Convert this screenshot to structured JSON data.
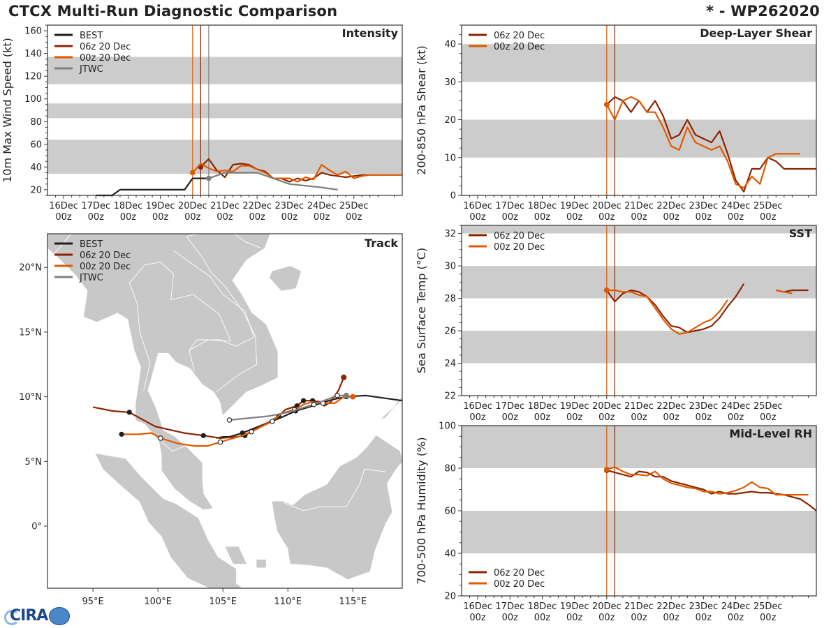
{
  "header": {
    "title": "CTCX Multi-Run Diagnostic Comparison",
    "storm_id": "* - WP262020"
  },
  "logo": {
    "text": "CIRA"
  },
  "colors": {
    "best": "#1e1e1e",
    "run06": "#8b2500",
    "run00": "#e05a00",
    "jtwc": "#7f7f7f",
    "band": "#cccccc",
    "land": "#c8c8c8",
    "border": "#ffffff"
  },
  "time_ticks": [
    "16Dec",
    "17Dec",
    "18Dec",
    "19Dec",
    "20Dec",
    "21Dec",
    "22Dec",
    "23Dec",
    "24Dec",
    "25Dec"
  ],
  "time_tick_hour": "00z",
  "chart_data": [
    {
      "id": "intensity",
      "type": "line",
      "title": "Intensity",
      "xlabel": "",
      "ylabel": "10m Max Wind Speed (kt)",
      "xlim": [
        -0.5,
        10.5
      ],
      "ylim": [
        15,
        165
      ],
      "yticks": [
        20,
        40,
        60,
        80,
        100,
        120,
        140,
        160
      ],
      "bands": [
        [
          34,
          64
        ],
        [
          83,
          96
        ],
        [
          113,
          137
        ]
      ],
      "vlines": [
        {
          "x": 4.0,
          "series": "run00"
        },
        {
          "x": 4.25,
          "series": "run06"
        },
        {
          "x": 4.5,
          "series": "jtwc"
        }
      ],
      "legend": {
        "position": "top-left",
        "entries": [
          "BEST",
          "06z 20 Dec",
          "00z 20 Dec",
          "JTWC"
        ]
      },
      "series": [
        {
          "name": "BEST",
          "key": "best",
          "x": [
            1.0,
            1.5,
            1.75,
            2.0,
            2.5,
            3.0,
            3.5,
            3.75,
            4.0,
            4.25,
            4.5
          ],
          "y": [
            15,
            15,
            20,
            20,
            20,
            20,
            20,
            20,
            30,
            30,
            30
          ]
        },
        {
          "name": "06z 20 Dec",
          "key": "run06",
          "start_marker": true,
          "x": [
            4.25,
            4.5,
            4.75,
            5.0,
            5.25,
            5.5,
            5.75,
            6.0,
            6.25,
            6.5,
            6.75,
            7.0,
            7.25,
            7.5,
            7.75,
            8.0,
            8.25,
            8.5,
            8.75,
            9.0,
            9.25,
            9.5,
            9.75,
            10.0,
            10.25,
            10.5
          ],
          "y": [
            40,
            47,
            37,
            31,
            42,
            43,
            42,
            38,
            36,
            30,
            30,
            27,
            30,
            28,
            30,
            35,
            33,
            32,
            31,
            32,
            33,
            33,
            33,
            33,
            33,
            33
          ]
        },
        {
          "name": "00z 20 Dec",
          "key": "run00",
          "start_marker": true,
          "x": [
            4.0,
            4.25,
            4.5,
            4.75,
            5.0,
            5.25,
            5.5,
            5.75,
            6.0,
            6.25,
            6.5,
            6.75,
            7.0,
            7.25,
            7.5,
            7.75,
            8.0,
            8.25,
            8.5,
            8.75,
            9.0,
            9.25,
            9.5,
            9.75,
            10.0,
            10.25,
            10.5
          ],
          "y": [
            35,
            43,
            39,
            36,
            37,
            36,
            41,
            41,
            38,
            35,
            30,
            30,
            30,
            27,
            31,
            29,
            42,
            37,
            33,
            36,
            30,
            32,
            33,
            33,
            33,
            33,
            33
          ]
        },
        {
          "name": "JTWC",
          "key": "jtwc",
          "start_marker": true,
          "x": [
            4.5,
            5.0,
            6.0,
            7.0,
            8.0,
            8.5
          ],
          "y": [
            30,
            35,
            35,
            25,
            22,
            20
          ]
        }
      ]
    },
    {
      "id": "shear",
      "type": "line",
      "title": "Deep-Layer Shear",
      "ylabel": "200-850 hPa Shear (kt)",
      "xlim": [
        -0.5,
        10.5
      ],
      "ylim": [
        0,
        45
      ],
      "yticks": [
        0,
        10,
        20,
        30,
        40
      ],
      "bands": [
        [
          10,
          20
        ],
        [
          30,
          40
        ]
      ],
      "vlines": [
        {
          "x": 4.0,
          "series": "run00"
        },
        {
          "x": 4.25,
          "series": "run06"
        }
      ],
      "legend": {
        "position": "top-left",
        "entries": [
          "06z 20 Dec",
          "00z 20 Dec"
        ]
      },
      "series": [
        {
          "name": "06z 20 Dec",
          "key": "run06",
          "start_marker": true,
          "x": [
            4.0,
            4.25,
            4.5,
            4.75,
            5.0,
            5.25,
            5.5,
            5.75,
            6.0,
            6.25,
            6.5,
            6.75,
            7.0,
            7.25,
            7.5,
            7.75,
            8.0,
            8.25,
            8.5,
            8.75,
            9.0,
            9.25,
            9.5,
            9.75,
            10.0,
            10.25,
            10.5
          ],
          "y": [
            24,
            26,
            25,
            22,
            25,
            22,
            25,
            21,
            15,
            16,
            20,
            16,
            15,
            14,
            17,
            11,
            4,
            1,
            7,
            7,
            10,
            9,
            7,
            7,
            7,
            7,
            7
          ]
        },
        {
          "name": "00z 20 Dec",
          "key": "run00",
          "start_marker": true,
          "x": [
            4.0,
            4.25,
            4.5,
            4.75,
            5.0,
            5.25,
            5.5,
            5.75,
            6.0,
            6.25,
            6.5,
            6.75,
            7.0,
            7.25,
            7.5,
            7.75,
            8.0,
            8.25,
            8.5,
            8.75,
            9.0,
            9.25,
            9.5,
            9.75,
            10.0
          ],
          "y": [
            24,
            20,
            25,
            26,
            25,
            22,
            22,
            18,
            13,
            12,
            18,
            14,
            13,
            12,
            13,
            9,
            3,
            2,
            5,
            3,
            10,
            11,
            11,
            11,
            11
          ]
        }
      ]
    },
    {
      "id": "sst",
      "type": "line",
      "title": "SST",
      "ylabel": "Sea Surface Temp (°C)",
      "xlim": [
        -0.5,
        10.5
      ],
      "ylim": [
        22,
        32.5
      ],
      "yticks": [
        22,
        24,
        26,
        28,
        30,
        32
      ],
      "bands": [
        [
          24,
          26
        ],
        [
          28,
          30
        ],
        [
          32,
          34
        ]
      ],
      "vlines": [
        {
          "x": 4.0,
          "series": "run00"
        },
        {
          "x": 4.25,
          "series": "run06"
        }
      ],
      "legend": {
        "position": "top-left",
        "entries": [
          "06z 20 Dec",
          "00z 20 Dec"
        ]
      },
      "series": [
        {
          "name": "06z 20 Dec",
          "key": "run06",
          "start_marker": true,
          "x": [
            4.0,
            4.25,
            4.5,
            4.75,
            5.0,
            5.25,
            5.5,
            5.75,
            6.0,
            6.25,
            6.5,
            6.75,
            7.0,
            7.25,
            7.5,
            7.75,
            8.0,
            8.25
          ],
          "y": [
            28.5,
            27.8,
            28.3,
            28.5,
            28.4,
            28.1,
            27.6,
            26.9,
            26.3,
            26.2,
            25.9,
            26.0,
            26.1,
            26.3,
            26.8,
            27.5,
            28.1,
            28.9
          ],
          "gap_x": [
            9.25,
            9.5,
            9.75,
            10.0,
            10.25
          ],
          "gap_y": [
            28.5,
            28.4,
            28.5,
            28.5,
            28.5
          ]
        },
        {
          "name": "00z 20 Dec",
          "key": "run00",
          "start_marker": true,
          "x": [
            4.0,
            4.25,
            4.5,
            4.75,
            5.0,
            5.25,
            5.5,
            5.75,
            6.0,
            6.25,
            6.5,
            6.75,
            7.0,
            7.25,
            7.5,
            7.75
          ],
          "y": [
            28.5,
            28.5,
            28.4,
            28.4,
            28.2,
            28.1,
            27.4,
            26.7,
            26.1,
            25.8,
            25.9,
            26.2,
            26.5,
            26.7,
            27.2,
            27.9
          ],
          "gap_x": [
            9.25,
            9.5,
            9.75
          ],
          "gap_y": [
            28.5,
            28.4,
            28.3
          ]
        }
      ]
    },
    {
      "id": "rh",
      "type": "line",
      "title": "Mid-Level RH",
      "ylabel": "700-500 hPa Humidity (%)",
      "xlim": [
        -0.5,
        10.5
      ],
      "ylim": [
        20,
        100
      ],
      "yticks": [
        20,
        40,
        60,
        80,
        100
      ],
      "bands": [
        [
          40,
          60
        ],
        [
          80,
          100
        ]
      ],
      "vlines": [
        {
          "x": 4.0,
          "series": "run00"
        },
        {
          "x": 4.25,
          "series": "run06"
        }
      ],
      "legend": {
        "position": "bottom-left",
        "entries": [
          "06z 20 Dec",
          "00z 20 Dec"
        ]
      },
      "series": [
        {
          "name": "06z 20 Dec",
          "key": "run06",
          "start_marker": true,
          "x": [
            4.0,
            4.25,
            4.5,
            4.75,
            5.0,
            5.25,
            5.5,
            5.75,
            6.0,
            6.25,
            6.5,
            6.75,
            7.0,
            7.25,
            7.5,
            7.75,
            8.0,
            8.25,
            8.5,
            8.75,
            9.0,
            9.25,
            9.5,
            9.75,
            10.0,
            10.25,
            10.5
          ],
          "y": [
            79,
            78,
            77,
            76,
            78.5,
            78,
            76,
            76,
            74,
            73,
            72,
            71,
            70,
            68,
            69,
            68,
            68,
            68.5,
            69,
            68.5,
            68.5,
            68,
            67.5,
            66.5,
            65.5,
            63,
            60
          ]
        },
        {
          "name": "00z 20 Dec",
          "key": "run00",
          "start_marker": true,
          "x": [
            4.0,
            4.25,
            4.5,
            4.75,
            5.0,
            5.25,
            5.5,
            5.75,
            6.0,
            6.25,
            6.5,
            6.75,
            7.0,
            7.25,
            7.5,
            7.75,
            8.0,
            8.25,
            8.5,
            8.75,
            9.0,
            9.25,
            9.5,
            9.75,
            10.0,
            10.25
          ],
          "y": [
            79.5,
            80.5,
            78.5,
            77,
            77,
            76.5,
            78.5,
            75,
            73,
            72,
            71,
            70.5,
            69,
            69,
            68,
            68.5,
            69.5,
            71,
            73.5,
            71,
            70.5,
            67.5,
            67.5,
            67.5,
            67.5,
            67.5
          ]
        }
      ]
    },
    {
      "id": "track",
      "type": "scatter",
      "title": "Track",
      "xlabel": "",
      "ylabel": "",
      "xlim": [
        91.5,
        118.8
      ],
      "ylim": [
        -4.8,
        22.6
      ],
      "xticks": [
        95,
        100,
        105,
        110,
        115
      ],
      "xtick_labels": [
        "95°E",
        "100°E",
        "105°E",
        "110°E",
        "115°E"
      ],
      "yticks": [
        0,
        5,
        10,
        15,
        20
      ],
      "ytick_labels": [
        "0°",
        "5°N",
        "10°N",
        "15°N",
        "20°N"
      ],
      "legend": {
        "position": "top-left",
        "entries": [
          "BEST",
          "06z 20 Dec",
          "00z 20 Dec",
          "JTWC"
        ]
      },
      "series": [
        {
          "name": "BEST",
          "key": "best",
          "lon": [
            118.8,
            116.0,
            114.5,
            113.5,
            112.5,
            111.6,
            110.6,
            109.5,
            108.5,
            107.5,
            106.5,
            105.5,
            105.0,
            104.5
          ],
          "lat": [
            9.7,
            10.1,
            10.0,
            9.8,
            9.5,
            9.2,
            8.9,
            8.4,
            8.0,
            7.6,
            7.2,
            6.9,
            6.9,
            6.8
          ],
          "filled": [
            2,
            6,
            10
          ]
        },
        {
          "name": "06z 20 Dec",
          "key": "run06",
          "lon": [
            114.3,
            113.9,
            113.3,
            112.8,
            112.5,
            111.9,
            111.2,
            110.7,
            109.8,
            109.3,
            108.3,
            107.3,
            106.7,
            106.0,
            104.8,
            103.5,
            102.0,
            99.8,
            97.8,
            96.5,
            95.0
          ],
          "lat": [
            11.5,
            10.5,
            9.6,
            9.3,
            9.6,
            9.7,
            9.7,
            9.3,
            9.0,
            8.5,
            7.9,
            7.4,
            7.0,
            6.9,
            6.8,
            7.0,
            7.2,
            7.7,
            8.8,
            8.9,
            9.2
          ],
          "start_marker": true,
          "open": [],
          "filled": [
            5,
            6,
            7,
            9,
            12,
            15,
            18
          ]
        },
        {
          "name": "00z 20 Dec",
          "key": "run00",
          "lon": [
            115.0,
            114.3,
            113.6,
            112.7,
            111.8,
            111.2,
            110.5,
            109.5,
            108.8,
            108.0,
            107.2,
            106.5,
            105.8,
            104.8,
            103.8,
            102.8,
            101.5,
            100.2,
            99.5,
            98.5,
            97.2
          ],
          "lat": [
            10.0,
            10.0,
            9.5,
            9.5,
            9.6,
            9.4,
            9.0,
            8.7,
            8.1,
            7.7,
            7.3,
            7.0,
            6.8,
            6.5,
            6.2,
            6.2,
            6.4,
            6.8,
            7.2,
            7.1,
            7.1
          ],
          "start_marker": true,
          "open": [
            3,
            6,
            8,
            10,
            13,
            17
          ],
          "filled": [
            20
          ]
        },
        {
          "name": "JTWC",
          "key": "jtwc",
          "lon": [
            114.5,
            113.8,
            112.0,
            110.0,
            108.5,
            106.5,
            105.5
          ],
          "lat": [
            10.1,
            10.1,
            9.4,
            8.8,
            8.5,
            8.3,
            8.2
          ],
          "start_marker": true,
          "open": [
            1,
            2,
            6
          ]
        }
      ]
    }
  ]
}
